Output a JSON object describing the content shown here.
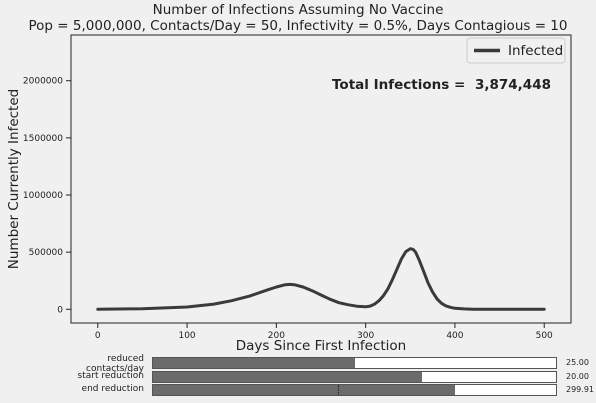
{
  "title": {
    "line1": "Number of Infections Assuming No Vaccine",
    "line2": "Pop = 5,000,000, Contacts/Day = 50, Infectivity = 0.5%, Days Contagious = 10"
  },
  "annotation": {
    "label": "Total Infections = ",
    "value": "3,874,448"
  },
  "colors": {
    "background": "#f0f0f0",
    "line": "#3a3a3a",
    "slider_fill": "#6b6b6b"
  },
  "chart_data": {
    "type": "line",
    "xlabel": "Days Since First Infection",
    "ylabel": "Number Currently Infected",
    "xlim": [
      -30,
      530
    ],
    "ylim": [
      -120000,
      2400000
    ],
    "xticks": [
      0,
      100,
      200,
      300,
      400,
      500
    ],
    "yticks": [
      0,
      500000,
      1000000,
      1500000,
      2000000
    ],
    "legend": {
      "position": "top-right",
      "entries": [
        "Infected"
      ]
    },
    "grid": false,
    "series": [
      {
        "name": "Infected",
        "x": [
          0,
          50,
          100,
          130,
          150,
          170,
          190,
          200,
          210,
          215,
          220,
          230,
          240,
          250,
          260,
          270,
          280,
          290,
          300,
          305,
          310,
          315,
          320,
          325,
          330,
          335,
          340,
          345,
          350,
          353,
          356,
          360,
          365,
          370,
          375,
          380,
          385,
          390,
          395,
          400,
          410,
          420,
          440,
          460,
          500
        ],
        "y": [
          0,
          5000,
          20000,
          45000,
          75000,
          115000,
          170000,
          195000,
          215000,
          218000,
          215000,
          195000,
          163000,
          125000,
          88000,
          58000,
          40000,
          27000,
          22000,
          28000,
          45000,
          75000,
          120000,
          180000,
          260000,
          350000,
          440000,
          505000,
          530000,
          525000,
          500000,
          430000,
          330000,
          230000,
          150000,
          90000,
          52000,
          30000,
          17000,
          9000,
          3000,
          1000,
          0,
          0,
          0
        ]
      }
    ]
  },
  "sliders": [
    {
      "label_lines": [
        "reduced",
        "contacts/day"
      ],
      "value": 25.0,
      "min": 0,
      "max": 50,
      "display": "25.00"
    },
    {
      "label_lines": [
        "start reduction"
      ],
      "value": 20.0,
      "min": 0,
      "max": 30,
      "display": "20.00"
    },
    {
      "label_lines": [
        "end reduction"
      ],
      "value": 299.91,
      "min": 0,
      "max": 400,
      "display": "299.91",
      "ref": 0.46
    }
  ]
}
